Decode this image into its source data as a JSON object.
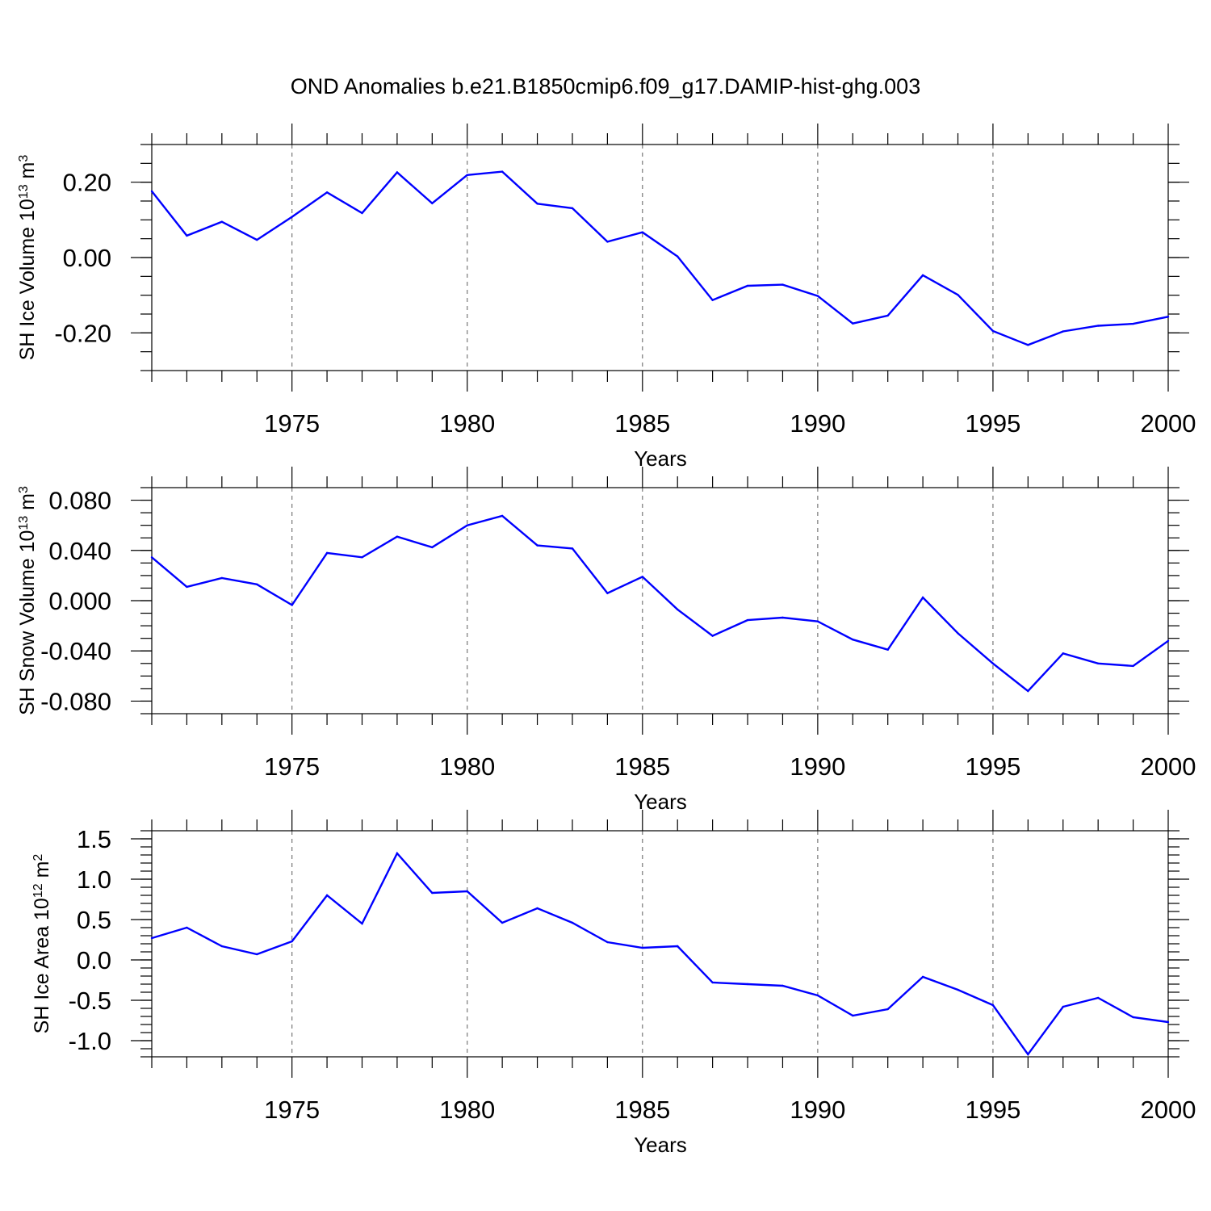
{
  "title": "OND Anomalies b.e21.B1850cmip6.f09_g17.DAMIP-hist-ghg.003",
  "colors": {
    "line": "#0000ff",
    "grid": "#777777"
  },
  "chart_data": [
    {
      "type": "line",
      "ylabel": {
        "main": "SH Ice Volume 10",
        "sup1": "13",
        "mid": " m",
        "sup2": "3"
      },
      "xlabel": "Years",
      "xlim": [
        1971,
        2000
      ],
      "ylim": [
        -0.3,
        0.3
      ],
      "yticks": [
        -0.2,
        0.0,
        0.2
      ],
      "ytick_labels": [
        "-0.20",
        "0.00",
        "0.20"
      ],
      "xticks": [
        1975,
        1980,
        1985,
        1990,
        1995,
        2000
      ],
      "xtick_labels": [
        "1975",
        "1980",
        "1985",
        "1990",
        "1995",
        "2000"
      ],
      "grid_x": [
        1975,
        1980,
        1985,
        1990,
        1995
      ],
      "x": [
        1971,
        1972,
        1973,
        1974,
        1975,
        1976,
        1977,
        1978,
        1979,
        1980,
        1981,
        1982,
        1983,
        1984,
        1985,
        1986,
        1987,
        1988,
        1989,
        1990,
        1991,
        1992,
        1993,
        1994,
        1995,
        1996,
        1997,
        1998,
        1999,
        2000
      ],
      "values": [
        0.176,
        0.058,
        0.095,
        0.047,
        0.108,
        0.173,
        0.118,
        0.226,
        0.144,
        0.219,
        0.228,
        0.143,
        0.131,
        0.042,
        0.067,
        0.003,
        -0.113,
        -0.075,
        -0.072,
        -0.102,
        -0.175,
        -0.154,
        -0.047,
        -0.099,
        -0.195,
        -0.232,
        -0.196,
        -0.181,
        -0.176,
        -0.157
      ]
    },
    {
      "type": "line",
      "ylabel": {
        "main": "SH Snow Volume 10",
        "sup1": "13",
        "mid": " m",
        "sup2": "3"
      },
      "xlabel": "Years",
      "xlim": [
        1971,
        2000
      ],
      "ylim": [
        -0.09,
        0.09
      ],
      "yticks": [
        -0.08,
        -0.04,
        0.0,
        0.04,
        0.08
      ],
      "ytick_labels": [
        "-0.080",
        "-0.040",
        "0.000",
        "0.040",
        "0.080"
      ],
      "xticks": [
        1975,
        1980,
        1985,
        1990,
        1995,
        2000
      ],
      "xtick_labels": [
        "1975",
        "1980",
        "1985",
        "1990",
        "1995",
        "2000"
      ],
      "grid_x": [
        1975,
        1980,
        1985,
        1990,
        1995
      ],
      "x": [
        1971,
        1972,
        1973,
        1974,
        1975,
        1976,
        1977,
        1978,
        1979,
        1980,
        1981,
        1982,
        1983,
        1984,
        1985,
        1986,
        1987,
        1988,
        1989,
        1990,
        1991,
        1992,
        1993,
        1994,
        1995,
        1996,
        1997,
        1998,
        1999,
        2000
      ],
      "values": [
        0.0345,
        0.011,
        0.018,
        0.013,
        -0.0035,
        0.038,
        0.0345,
        0.051,
        0.0425,
        0.06,
        0.0675,
        0.044,
        0.0415,
        0.006,
        0.019,
        -0.007,
        -0.028,
        -0.0155,
        -0.0135,
        -0.0165,
        -0.031,
        -0.039,
        0.0025,
        -0.026,
        -0.05,
        -0.072,
        -0.042,
        -0.05,
        -0.052,
        -0.032
      ]
    },
    {
      "type": "line",
      "ylabel": {
        "main": "SH Ice Area 10",
        "sup1": "12",
        "mid": " m",
        "sup2": "2"
      },
      "xlabel": "Years",
      "xlim": [
        1971,
        2000
      ],
      "ylim": [
        -1.2,
        1.6
      ],
      "yticks": [
        -1.0,
        -0.5,
        0.0,
        0.5,
        1.0,
        1.5
      ],
      "ytick_labels": [
        "-1.0",
        "-0.5",
        "0.0",
        "0.5",
        "1.0",
        "1.5"
      ],
      "xticks": [
        1975,
        1980,
        1985,
        1990,
        1995,
        2000
      ],
      "xtick_labels": [
        "1975",
        "1980",
        "1985",
        "1990",
        "1995",
        "2000"
      ],
      "grid_x": [
        1975,
        1980,
        1985,
        1990,
        1995
      ],
      "x": [
        1971,
        1972,
        1973,
        1974,
        1975,
        1976,
        1977,
        1978,
        1979,
        1980,
        1981,
        1982,
        1983,
        1984,
        1985,
        1986,
        1987,
        1988,
        1989,
        1990,
        1991,
        1992,
        1993,
        1994,
        1995,
        1996,
        1997,
        1998,
        1999,
        2000
      ],
      "values": [
        0.27,
        0.4,
        0.17,
        0.07,
        0.23,
        0.8,
        0.45,
        1.32,
        0.83,
        0.85,
        0.46,
        0.64,
        0.46,
        0.22,
        0.15,
        0.17,
        -0.28,
        -0.3,
        -0.32,
        -0.44,
        -0.69,
        -0.61,
        -0.21,
        -0.37,
        -0.56,
        -1.17,
        -0.58,
        -0.47,
        -0.71,
        -0.77
      ]
    }
  ]
}
